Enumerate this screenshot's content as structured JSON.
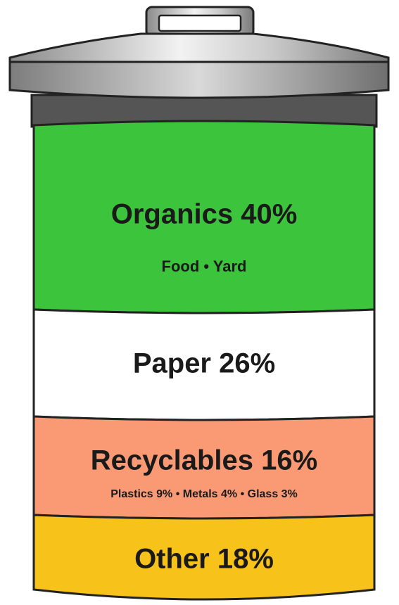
{
  "segments": [
    {
      "label": "Organics 40%",
      "detail": "Food • Yard"
    },
    {
      "label": "Paper 26%"
    },
    {
      "label": "Recyclables 16%",
      "detail": "Plastics 9% • Metals 4% • Glass 3%"
    },
    {
      "label": "Other 18%"
    }
  ]
}
